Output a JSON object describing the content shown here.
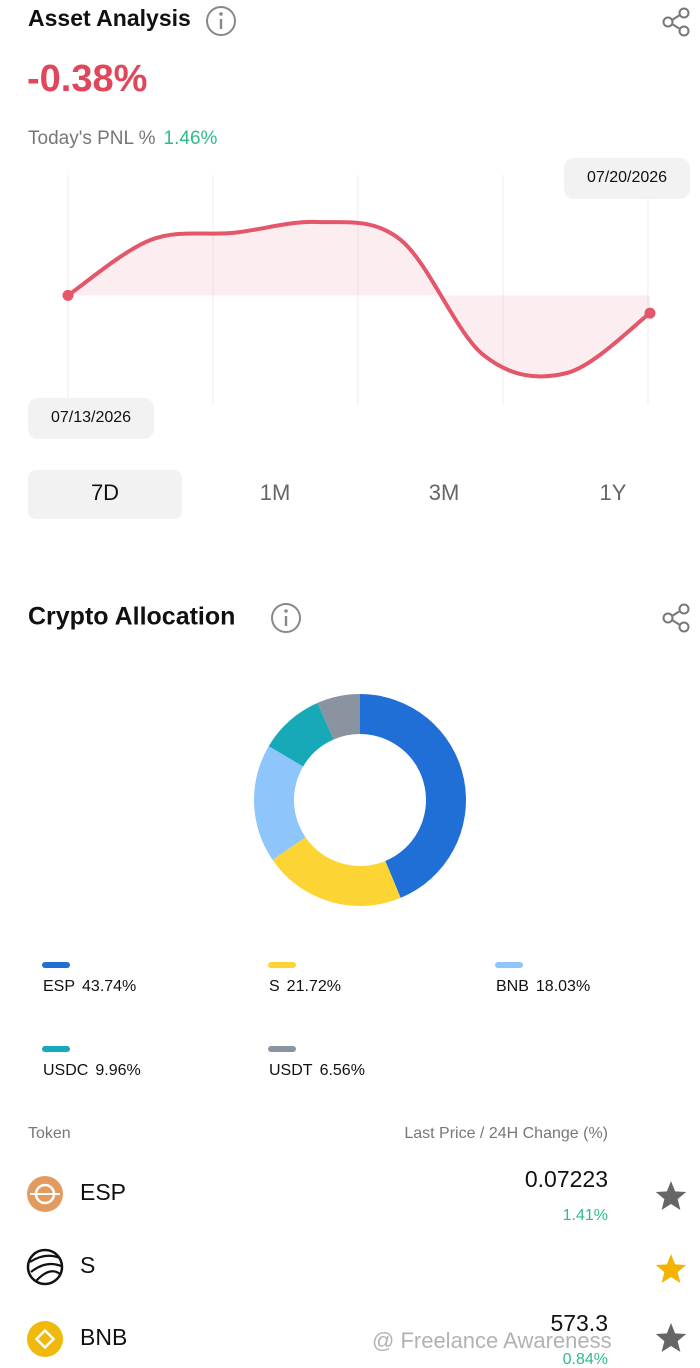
{
  "asset_analysis": {
    "title": "Asset Analysis",
    "pnl": "-0.38%",
    "today_label": "Today's PNL %",
    "today_value": "1.46%"
  },
  "ranges": [
    "7D",
    "1M",
    "3M",
    "1Y"
  ],
  "allocation_title": "Crypto Allocation",
  "chart_data": [
    {
      "type": "line",
      "x": [
        "07/13/2026",
        null,
        null,
        null,
        null,
        null,
        null,
        "07/20/2026"
      ],
      "values": [
        0,
        1.19,
        1.34,
        1.57,
        1.19,
        -1.28,
        -1.66,
        -0.38
      ],
      "color": "#e4566a"
    },
    {
      "type": "pie",
      "donut": true,
      "categories": [
        "ESP",
        "S",
        "BNB",
        "USDC",
        "USDT"
      ],
      "values": [
        43.74,
        21.72,
        18.03,
        9.96,
        6.56
      ],
      "value_labels": [
        "43.74%",
        "21.72%",
        "18.03%",
        "9.96%",
        "6.56%"
      ],
      "colors": [
        "#1f6fd6",
        "#fcd535",
        "#8ec5fb",
        "#17a9b8",
        "#8a93a0"
      ]
    }
  ],
  "table": {
    "header": [
      "Token",
      "Last Price / 24H Change (%)"
    ],
    "rows": [
      {
        "name": "ESP",
        "price": "0.07223",
        "change": "1.41%",
        "favorite": false
      },
      {
        "name": "S",
        "favorite": true
      },
      {
        "name": "BNB",
        "price": "573.3",
        "change": "0.84%",
        "favorite": false
      }
    ]
  },
  "watermark": "@ Freelance Awareness"
}
